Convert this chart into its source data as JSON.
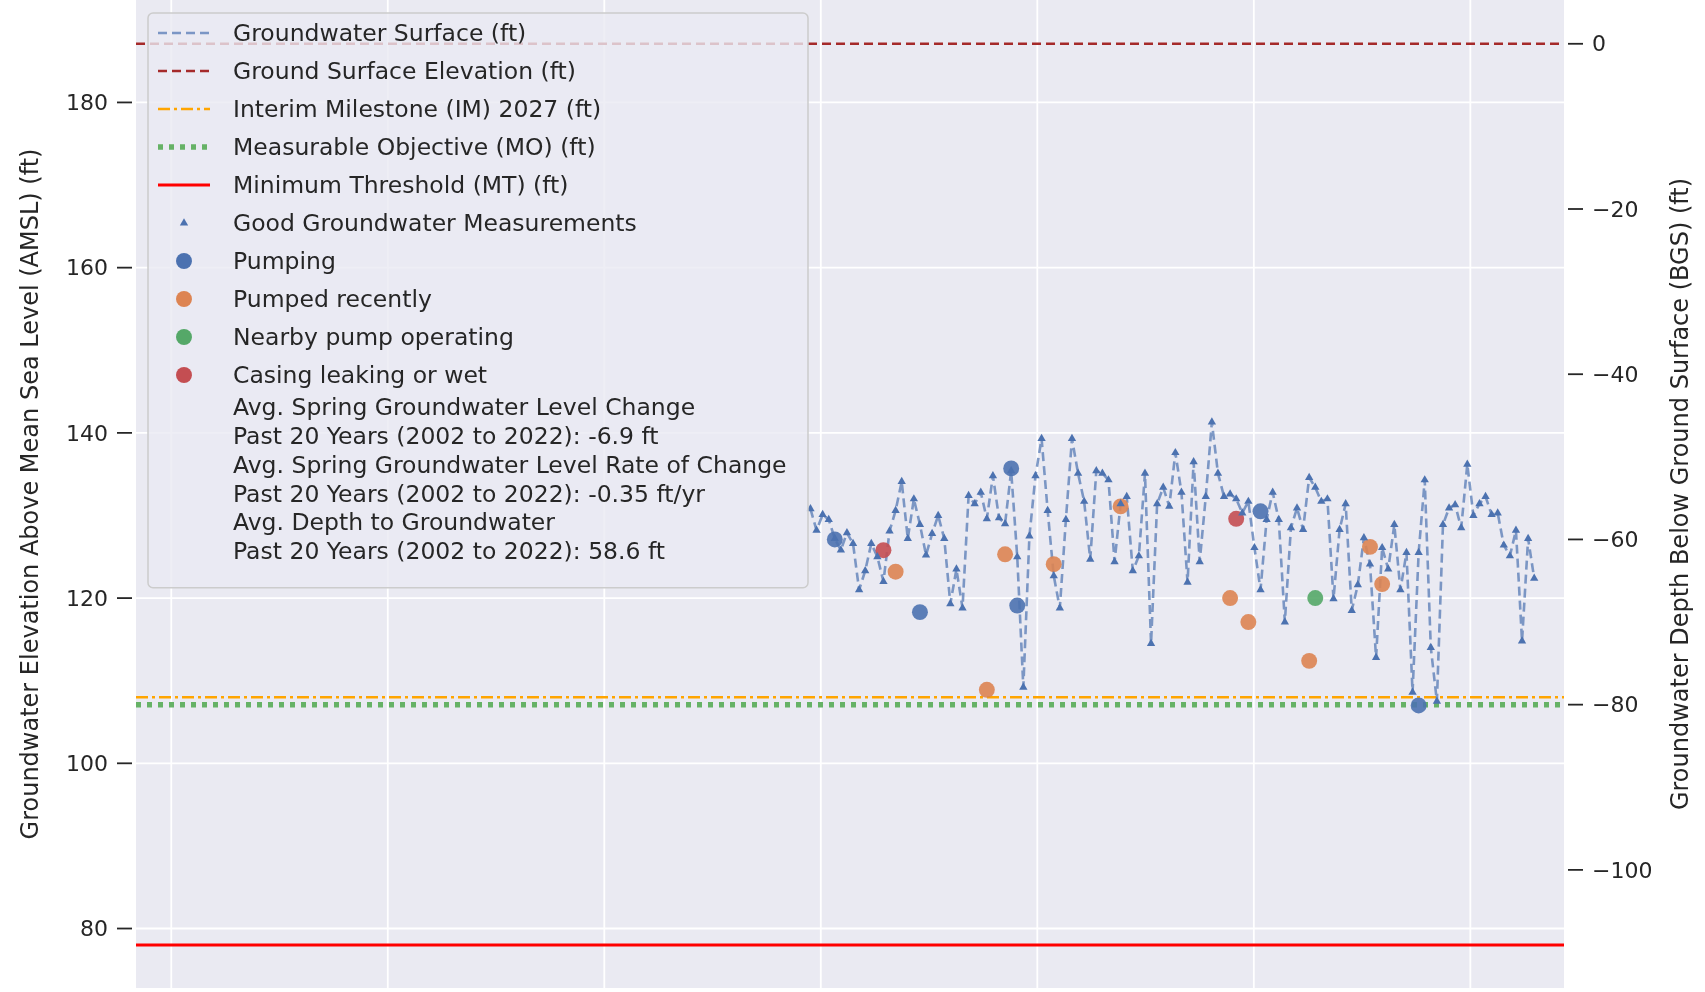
{
  "chart_data": {
    "type": "line",
    "ylabel": "Groundwater Elevation Above Mean Sea Level (AMSL) (ft)",
    "y2label": "Groundwater Depth Below Ground Surface (BGS) (ft)",
    "categories": [
      null,
      null,
      null,
      null,
      null,
      null,
      null,
      null,
      null,
      null,
      null,
      null,
      null,
      null,
      null,
      null,
      null,
      null,
      null,
      null,
      null,
      null,
      null,
      null,
      null,
      null,
      null,
      null,
      null,
      null,
      null,
      null,
      null,
      null,
      null,
      null,
      null,
      null,
      null,
      null,
      null,
      null,
      null,
      null,
      null,
      null,
      null,
      null,
      null,
      null,
      null,
      null,
      null,
      null,
      null,
      null,
      null,
      null,
      null,
      null,
      null,
      null,
      null,
      null,
      null,
      null,
      null,
      null,
      null,
      null,
      null,
      null,
      null,
      null,
      null,
      null,
      null,
      null,
      null,
      null,
      null,
      null,
      null,
      null,
      null,
      null,
      null,
      null,
      null,
      null,
      null,
      null,
      null,
      null,
      null,
      null,
      null,
      null,
      null,
      null,
      null,
      null,
      null,
      null,
      null,
      null,
      null,
      null,
      null,
      null,
      null,
      null,
      null,
      null,
      null,
      null,
      null,
      null,
      null,
      null,
      null,
      null,
      null,
      null,
      null,
      null,
      null,
      null,
      null,
      null,
      null,
      null,
      null,
      null,
      null,
      null,
      null,
      null,
      null,
      null,
      null,
      null,
      null,
      null,
      null,
      null,
      null,
      null,
      null,
      null,
      null,
      null,
      null,
      null,
      null,
      null,
      null,
      null,
      null,
      null,
      null,
      null,
      null,
      null,
      null,
      null,
      null,
      null,
      null,
      null,
      null,
      null,
      null,
      null,
      null,
      null,
      null,
      null,
      null,
      null,
      null,
      null,
      null,
      null,
      null,
      null,
      null,
      null,
      null,
      null,
      null,
      null,
      null,
      null,
      null,
      null,
      null,
      null,
      null,
      null,
      null,
      null,
      null,
      null,
      null,
      null,
      null,
      null,
      null,
      null,
      null,
      null,
      null,
      null,
      null,
      null,
      null,
      null,
      null,
      null,
      null,
      null,
      null,
      null,
      null,
      null
    ],
    "series": [
      {
        "name": "Groundwater Surface (ft)",
        "color": "#4c72b0",
        "line_style": "dashed",
        "values": [
          null,
          null,
          null,
          null,
          null,
          null,
          null,
          null,
          null,
          null,
          null,
          null,
          null,
          null,
          null,
          null,
          null,
          null,
          null,
          null,
          null,
          null,
          null,
          null,
          null,
          null,
          null,
          null,
          null,
          null,
          null,
          null,
          null,
          null,
          null,
          null,
          null,
          null,
          null,
          null,
          null,
          null,
          null,
          null,
          null,
          null,
          null,
          null,
          null,
          null,
          null,
          null,
          null,
          null,
          null,
          null,
          null,
          null,
          null,
          null,
          null,
          null,
          null,
          null,
          null,
          null,
          null,
          null,
          null,
          null,
          null,
          null,
          null,
          null,
          null,
          null,
          null,
          null,
          null,
          null,
          null,
          null,
          null,
          null,
          null,
          null,
          null,
          null,
          null,
          null,
          null,
          null,
          null,
          null,
          null,
          null,
          null,
          null,
          null,
          null,
          null,
          null,
          null,
          null,
          null,
          null,
          130.8,
          128.2,
          130.1,
          129.5,
          127.2,
          125.8,
          127.9,
          126.6,
          121.0,
          123.3,
          126.6,
          125.0,
          122.0,
          128.1,
          130.6,
          134.1,
          127.2,
          132.0,
          128.9,
          125.2,
          127.8,
          130.0,
          127.2,
          119.3,
          123.5,
          118.8,
          132.4,
          131.4,
          132.8,
          129.6,
          134.8,
          129.7,
          129.0,
          135.4,
          125.0,
          109.2,
          127.5,
          134.8,
          139.3,
          130.6,
          122.7,
          118.8,
          129.5,
          139.3,
          135.1,
          131.7,
          124.7,
          135.4,
          135.1,
          134.3,
          124.4,
          131.4,
          132.3,
          123.3,
          125.1,
          135.1,
          114.5,
          131.4,
          133.4,
          131.1,
          137.6,
          132.8,
          121.9,
          136.5,
          124.4,
          132.3,
          141.3,
          135.1,
          132.3,
          132.6,
          132.0,
          130.3,
          131.7,
          126.1,
          121.0,
          129.5,
          132.8,
          129.5,
          117.1,
          128.5,
          130.9,
          128.3,
          134.6,
          133.4,
          131.7,
          132.0,
          119.9,
          128.3,
          131.4,
          118.5,
          121.6,
          127.3,
          124.1,
          112.8,
          126.1,
          123.5,
          128.9,
          121.0,
          125.5,
          108.6,
          125.5,
          134.3,
          114.0,
          107.5,
          128.9,
          130.9,
          131.3,
          128.5,
          136.2,
          130.0,
          131.4,
          132.3,
          130.1,
          130.3,
          126.4,
          125.1,
          128.2,
          114.8,
          127.2,
          122.4
        ]
      },
      {
        "name": "Good Groundwater Measurements",
        "type": "scatter",
        "color": "#4c72b0",
        "marker": "triangle",
        "values": [
          null,
          null,
          null,
          null,
          null,
          null,
          null,
          null,
          null,
          null,
          null,
          null,
          null,
          null,
          null,
          null,
          null,
          null,
          null,
          null,
          null,
          null,
          null,
          null,
          null,
          null,
          null,
          null,
          null,
          null,
          null,
          null,
          null,
          null,
          null,
          null,
          null,
          null,
          null,
          null,
          null,
          null,
          null,
          null,
          null,
          null,
          null,
          null,
          null,
          null,
          null,
          null,
          null,
          null,
          null,
          null,
          null,
          null,
          null,
          null,
          null,
          null,
          null,
          null,
          null,
          null,
          null,
          null,
          null,
          null,
          null,
          null,
          null,
          null,
          null,
          null,
          null,
          null,
          null,
          null,
          null,
          null,
          null,
          null,
          null,
          null,
          null,
          null,
          null,
          null,
          null,
          null,
          null,
          null,
          null,
          null,
          null,
          null,
          null,
          null,
          null,
          null,
          null,
          null,
          null,
          null,
          130.8,
          128.2,
          130.1,
          129.5,
          127.2,
          125.8,
          127.9,
          126.6,
          121.0,
          123.3,
          126.6,
          125.0,
          122.0,
          128.1,
          130.6,
          134.1,
          127.2,
          132.0,
          128.9,
          125.2,
          127.8,
          130.0,
          127.2,
          119.3,
          123.5,
          118.8,
          132.4,
          131.4,
          132.8,
          129.6,
          134.8,
          129.7,
          129.0,
          135.4,
          125.0,
          109.2,
          127.5,
          134.8,
          139.3,
          130.6,
          122.7,
          118.8,
          129.5,
          139.3,
          135.1,
          131.7,
          124.7,
          135.4,
          135.1,
          134.3,
          124.4,
          131.4,
          132.3,
          123.3,
          125.1,
          135.1,
          114.5,
          131.4,
          133.4,
          131.1,
          137.6,
          132.8,
          121.9,
          136.5,
          124.4,
          132.3,
          141.3,
          135.1,
          132.3,
          132.6,
          132.0,
          130.3,
          131.7,
          126.1,
          121.0,
          129.5,
          132.8,
          129.5,
          117.1,
          128.5,
          130.9,
          128.3,
          134.6,
          133.4,
          131.7,
          132.0,
          119.9,
          128.3,
          131.4,
          118.5,
          121.6,
          127.3,
          124.1,
          112.8,
          126.1,
          123.5,
          128.9,
          121.0,
          125.5,
          108.6,
          125.5,
          134.3,
          114.0,
          107.5,
          128.9,
          130.9,
          131.3,
          128.5,
          136.2,
          130.0,
          131.4,
          132.3,
          130.1,
          130.3,
          126.4,
          125.1,
          128.2,
          114.8,
          127.2,
          122.4
        ]
      },
      {
        "name": "Pumping",
        "type": "scatter",
        "color": "#4c72b0",
        "marker": "circle",
        "values": [
          null,
          null,
          null,
          null,
          null,
          null,
          null,
          null,
          null,
          null,
          null,
          null,
          null,
          null,
          null,
          null,
          null,
          null,
          null,
          null,
          null,
          null,
          null,
          null,
          null,
          null,
          null,
          null,
          null,
          null,
          null,
          null,
          null,
          null,
          null,
          null,
          null,
          null,
          null,
          null,
          null,
          null,
          null,
          null,
          null,
          null,
          null,
          null,
          null,
          null,
          null,
          null,
          null,
          null,
          null,
          null,
          null,
          null,
          null,
          null,
          null,
          null,
          null,
          null,
          null,
          null,
          null,
          null,
          null,
          null,
          null,
          null,
          null,
          null,
          null,
          null,
          null,
          null,
          null,
          null,
          null,
          null,
          null,
          null,
          null,
          null,
          null,
          null,
          null,
          null,
          null,
          null,
          null,
          null,
          null,
          null,
          null,
          null,
          null,
          null,
          null,
          null,
          null,
          null,
          null,
          null,
          null,
          null,
          null,
          null,
          127.1,
          null,
          null,
          null,
          null,
          null,
          null,
          null,
          null,
          null,
          null,
          null,
          null,
          null,
          118.3,
          null,
          null,
          null,
          null,
          null,
          null,
          null,
          null,
          null,
          null,
          null,
          null,
          null,
          null,
          135.7,
          119.1,
          null,
          null,
          null,
          null,
          null,
          null,
          null,
          null,
          null,
          null,
          null,
          null,
          null,
          null,
          null,
          null,
          null,
          null,
          null,
          null,
          null,
          null,
          null,
          null,
          null,
          null,
          null,
          null,
          null,
          null,
          null,
          null,
          null,
          null,
          null,
          null,
          null,
          null,
          null,
          130.5,
          null,
          null,
          null,
          null,
          null,
          null,
          null,
          null,
          null,
          null,
          null,
          null,
          null,
          null,
          null,
          null,
          null,
          null,
          null,
          null,
          null,
          null,
          null,
          null,
          null,
          107.0,
          null,
          null,
          null,
          null,
          null,
          null,
          null,
          null,
          null,
          null,
          null,
          null,
          null,
          null,
          null,
          null,
          null,
          null,
          null
        ]
      },
      {
        "name": "Pumped recently",
        "type": "scatter",
        "color": "#dd8452",
        "marker": "circle",
        "values": [
          null,
          null,
          null,
          null,
          null,
          null,
          null,
          null,
          null,
          null,
          null,
          null,
          null,
          null,
          null,
          null,
          null,
          null,
          null,
          null,
          null,
          null,
          null,
          null,
          null,
          null,
          null,
          null,
          null,
          null,
          null,
          null,
          null,
          null,
          null,
          null,
          null,
          null,
          null,
          null,
          null,
          null,
          null,
          null,
          null,
          null,
          null,
          null,
          null,
          null,
          null,
          null,
          null,
          null,
          null,
          null,
          null,
          null,
          null,
          null,
          null,
          null,
          null,
          null,
          null,
          null,
          null,
          null,
          null,
          null,
          null,
          null,
          null,
          null,
          null,
          null,
          null,
          null,
          null,
          null,
          null,
          null,
          null,
          null,
          null,
          null,
          null,
          null,
          null,
          null,
          null,
          null,
          null,
          null,
          null,
          null,
          null,
          null,
          null,
          null,
          null,
          null,
          null,
          null,
          null,
          null,
          null,
          null,
          null,
          null,
          null,
          null,
          null,
          null,
          null,
          null,
          null,
          null,
          null,
          null,
          123.2,
          null,
          null,
          null,
          null,
          null,
          null,
          null,
          null,
          null,
          null,
          null,
          null,
          null,
          null,
          108.9,
          null,
          null,
          125.3,
          null,
          null,
          null,
          null,
          null,
          null,
          null,
          124.1,
          null,
          null,
          null,
          null,
          null,
          null,
          null,
          null,
          null,
          null,
          131.1,
          null,
          null,
          null,
          null,
          null,
          null,
          null,
          null,
          null,
          null,
          null,
          null,
          null,
          null,
          null,
          null,
          null,
          120.0,
          null,
          null,
          117.1,
          null,
          null,
          null,
          null,
          null,
          null,
          null,
          null,
          null,
          112.4,
          null,
          null,
          null,
          null,
          null,
          null,
          null,
          null,
          null,
          126.2,
          null,
          121.7,
          null,
          null,
          null,
          null,
          null,
          null,
          null,
          null,
          null,
          null,
          null,
          null,
          null,
          null,
          null,
          null,
          null,
          null,
          null,
          null,
          null,
          null,
          null,
          null,
          null
        ]
      },
      {
        "name": "Nearby pump operating",
        "type": "scatter",
        "color": "#55a868",
        "marker": "circle",
        "values": [
          null,
          null,
          null,
          null,
          null,
          null,
          null,
          null,
          null,
          null,
          null,
          null,
          null,
          null,
          null,
          null,
          null,
          null,
          null,
          null,
          null,
          null,
          null,
          null,
          null,
          null,
          null,
          null,
          null,
          null,
          null,
          null,
          null,
          null,
          null,
          null,
          null,
          null,
          null,
          null,
          null,
          null,
          null,
          null,
          null,
          null,
          null,
          null,
          null,
          null,
          null,
          null,
          null,
          null,
          null,
          null,
          null,
          null,
          null,
          null,
          null,
          null,
          null,
          null,
          null,
          null,
          null,
          null,
          null,
          null,
          null,
          null,
          null,
          null,
          null,
          null,
          null,
          null,
          null,
          null,
          null,
          null,
          null,
          null,
          null,
          null,
          null,
          null,
          null,
          null,
          null,
          null,
          null,
          null,
          null,
          null,
          null,
          null,
          null,
          null,
          null,
          null,
          null,
          null,
          null,
          null,
          null,
          null,
          null,
          null,
          null,
          null,
          null,
          null,
          null,
          null,
          null,
          null,
          null,
          null,
          null,
          null,
          null,
          null,
          null,
          null,
          null,
          null,
          null,
          null,
          null,
          null,
          null,
          null,
          null,
          null,
          null,
          null,
          null,
          null,
          null,
          null,
          null,
          null,
          null,
          null,
          null,
          null,
          null,
          null,
          null,
          null,
          null,
          null,
          null,
          null,
          null,
          null,
          null,
          null,
          null,
          null,
          null,
          null,
          null,
          null,
          null,
          null,
          null,
          null,
          null,
          null,
          null,
          null,
          null,
          null,
          null,
          null,
          null,
          null,
          null,
          null,
          null,
          null,
          null,
          null,
          null,
          null,
          null,
          120.0,
          null,
          null,
          null,
          null,
          null,
          null,
          null,
          null,
          null,
          null,
          null,
          null,
          null,
          null,
          null,
          null,
          null,
          null,
          null,
          null,
          null,
          null,
          null,
          null,
          null,
          null,
          null,
          null,
          null,
          null,
          null,
          null,
          null,
          null,
          null,
          null
        ]
      },
      {
        "name": "Casing leaking or wet",
        "type": "scatter",
        "color": "#c44e52",
        "marker": "circle",
        "values": [
          null,
          null,
          null,
          null,
          null,
          null,
          null,
          null,
          null,
          null,
          null,
          null,
          null,
          null,
          null,
          null,
          null,
          null,
          null,
          null,
          null,
          null,
          null,
          null,
          null,
          null,
          null,
          null,
          null,
          null,
          null,
          null,
          null,
          null,
          null,
          null,
          null,
          null,
          null,
          null,
          null,
          null,
          null,
          null,
          null,
          null,
          null,
          null,
          null,
          null,
          null,
          null,
          null,
          null,
          null,
          null,
          null,
          null,
          null,
          null,
          null,
          null,
          null,
          null,
          null,
          null,
          null,
          null,
          null,
          null,
          null,
          null,
          null,
          null,
          null,
          null,
          null,
          null,
          null,
          null,
          null,
          null,
          null,
          null,
          null,
          null,
          null,
          null,
          null,
          null,
          null,
          null,
          null,
          null,
          null,
          null,
          null,
          null,
          null,
          null,
          null,
          null,
          null,
          null,
          null,
          null,
          null,
          null,
          null,
          null,
          null,
          null,
          null,
          null,
          null,
          null,
          null,
          null,
          125.8,
          null,
          null,
          null,
          null,
          null,
          null,
          null,
          null,
          null,
          null,
          null,
          null,
          null,
          null,
          null,
          null,
          null,
          null,
          null,
          null,
          null,
          null,
          null,
          null,
          null,
          null,
          null,
          null,
          null,
          null,
          null,
          null,
          null,
          null,
          null,
          null,
          null,
          null,
          null,
          null,
          null,
          null,
          null,
          null,
          null,
          null,
          null,
          null,
          null,
          null,
          null,
          null,
          null,
          null,
          null,
          null,
          null,
          129.6,
          null,
          null,
          null,
          null,
          null,
          null,
          null,
          null,
          null,
          null,
          null,
          null,
          null,
          null,
          null,
          null,
          null,
          null,
          null,
          null,
          null,
          null,
          null,
          null,
          null,
          null,
          null,
          null,
          null,
          null,
          null,
          null,
          null,
          null,
          null,
          null,
          null,
          null,
          null,
          null,
          null,
          null,
          null,
          null,
          null,
          null,
          null,
          null,
          null
        ]
      }
    ],
    "ref_lines": [
      {
        "axis": "y2",
        "value": 0,
        "label": "Ground Surface Elevation (ft)",
        "color": "#a52a2a",
        "line_style": "dashed"
      },
      {
        "axis": "y",
        "value": 108.0,
        "label": "Interim Milestone (IM) 2027 (ft)",
        "color": "#ffa500",
        "line_style": "dashdot"
      },
      {
        "axis": "y",
        "value": 107.1,
        "label": "Measurable Objective (MO) (ft)",
        "color": "#66b266",
        "line_style": "dotted"
      },
      {
        "axis": "y",
        "value": 78.0,
        "label": "Minimum Threshold (MT) (ft)",
        "color": "#ff0000",
        "line_style": "solid"
      }
    ],
    "annotations": [
      "Avg. Spring Groundwater Level Change\nPast 20 Years (2002 to 2022): -6.9 ft",
      "Avg. Spring Groundwater Level Rate of Change\nPast 20 Years (2002 to 2022): -0.35 ft/yr",
      "Avg. Depth to Groundwater\nPast 20 Years (2002 to 2022): 58.6 ft"
    ],
    "ylim": [
      72.8,
      192.4
    ],
    "yticks": [
      80,
      100,
      120,
      140,
      160,
      180
    ],
    "y2lim": [
      -114.3,
      5.3
    ],
    "y2ticks": [
      {
        "value": -100,
        "label": "−100"
      },
      {
        "value": -80,
        "label": "−80"
      },
      {
        "value": -60,
        "label": "−60"
      },
      {
        "value": -40,
        "label": "−40"
      },
      {
        "value": -20,
        "label": "−20"
      },
      0
    ],
    "grid": true,
    "legend": "top left"
  }
}
